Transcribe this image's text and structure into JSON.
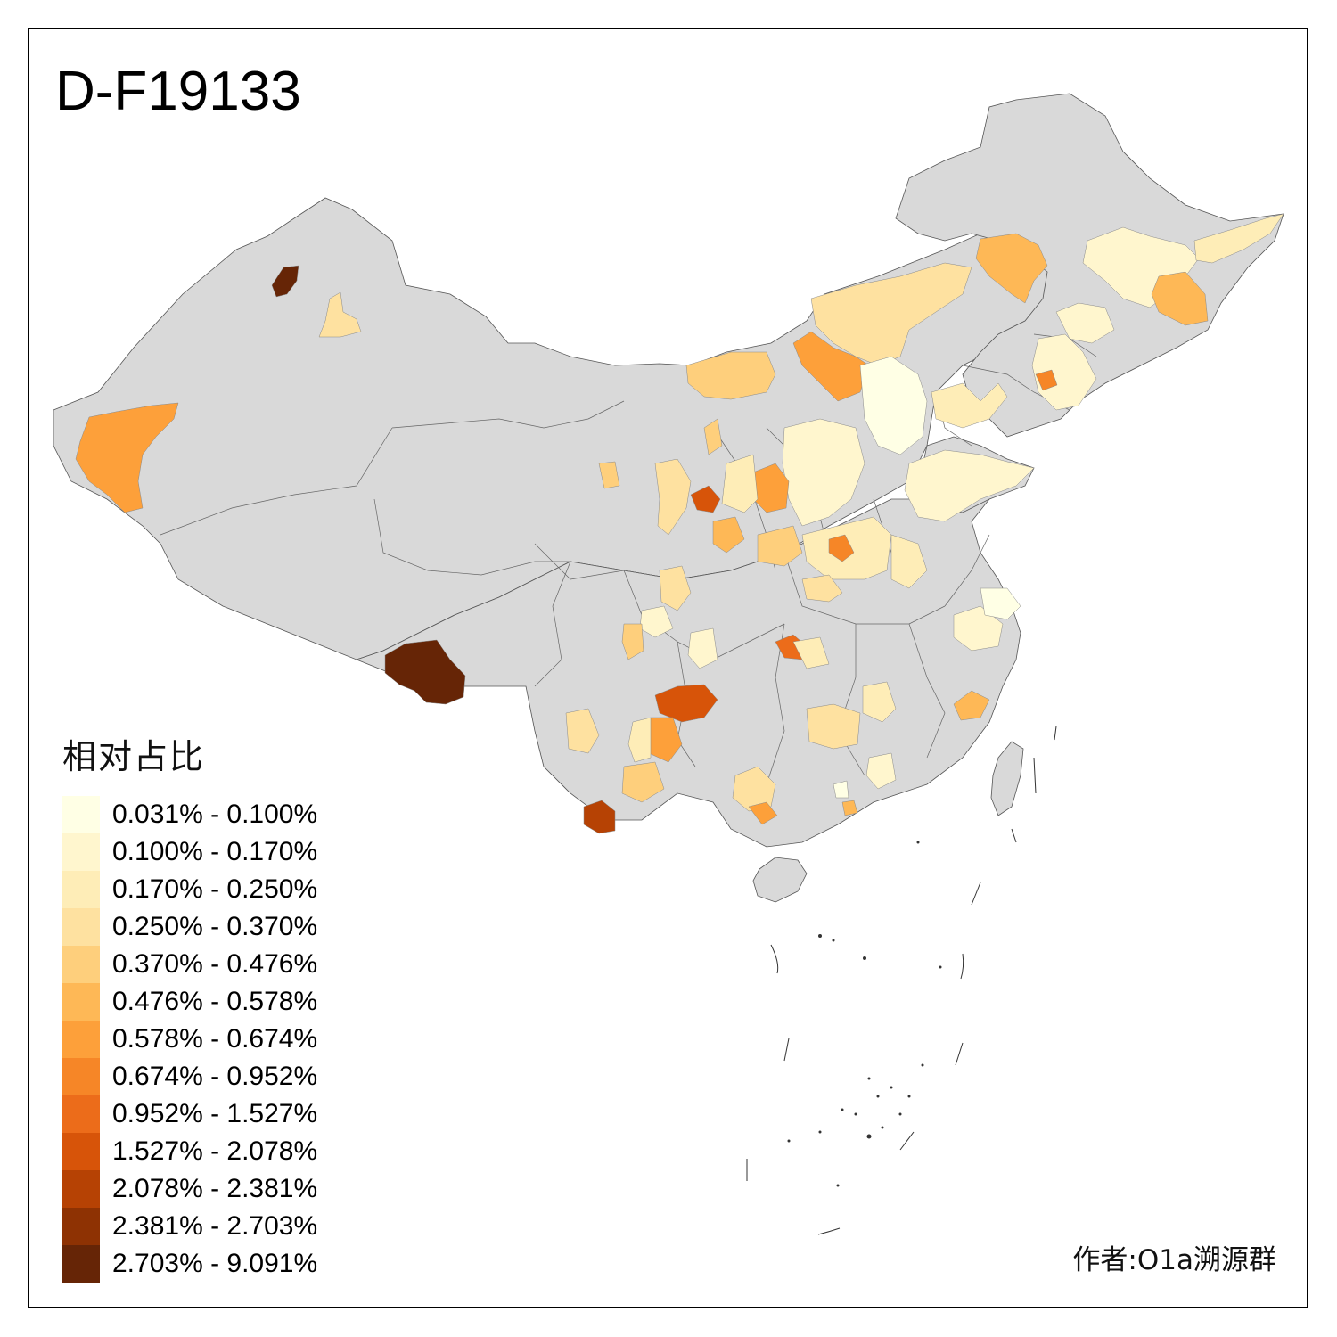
{
  "title": "D-F19133",
  "legend": {
    "title": "相对占比",
    "items": [
      {
        "label": "0.031% - 0.100%",
        "color": "#FFFFE5"
      },
      {
        "label": "0.100% - 0.170%",
        "color": "#FFF6CE"
      },
      {
        "label": "0.170% - 0.250%",
        "color": "#FEEDB7"
      },
      {
        "label": "0.250% - 0.370%",
        "color": "#FEE1A0"
      },
      {
        "label": "0.370% - 0.476%",
        "color": "#FECF7C"
      },
      {
        "label": "0.476% - 0.578%",
        "color": "#FEB856"
      },
      {
        "label": "0.578% - 0.674%",
        "color": "#FDA03A"
      },
      {
        "label": "0.674% - 0.952%",
        "color": "#F68627"
      },
      {
        "label": "0.952% - 1.527%",
        "color": "#EC6C1A"
      },
      {
        "label": "1.527% - 2.078%",
        "color": "#D75409"
      },
      {
        "label": "2.078% - 2.381%",
        "color": "#B64204"
      },
      {
        "label": "2.381% - 2.703%",
        "color": "#8E3203"
      },
      {
        "label": "2.703% - 9.091%",
        "color": "#662506"
      }
    ]
  },
  "credit": "作者:O1a溯源群",
  "base_color": "#D9D9D9"
}
